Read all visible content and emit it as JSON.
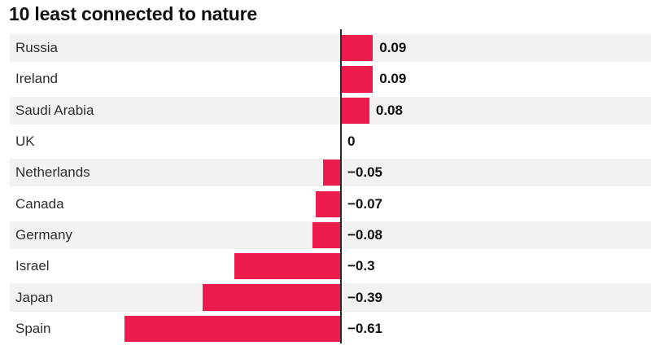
{
  "title": "10 least connected to nature",
  "colors": {
    "bar": "#ed1c4c",
    "row_stripe": "#f2f2f2",
    "axis": "#2b2b2b",
    "title_text": "#101010",
    "category_text": "#2e2e2e",
    "value_text": "#111111",
    "background": "#ffffff"
  },
  "chart_data": {
    "type": "bar",
    "orientation": "horizontal",
    "title": "10 least connected to nature",
    "categories": [
      "Russia",
      "Ireland",
      "Saudi Arabia",
      "UK",
      "Netherlands",
      "Canada",
      "Germany",
      "Israel",
      "Japan",
      "Spain"
    ],
    "values": [
      0.09,
      0.09,
      0.08,
      0,
      -0.05,
      -0.07,
      -0.08,
      -0.3,
      -0.39,
      -0.61
    ],
    "value_labels": [
      "0.09",
      "0.09",
      "0.08",
      "0",
      "−0.05",
      "−0.07",
      "−0.08",
      "−0.3",
      "−0.39",
      "−0.61"
    ],
    "xlabel": "",
    "ylabel": "",
    "xlim": [
      -0.7,
      0.1
    ],
    "baseline": 0,
    "grid": false,
    "legend": false,
    "row_stripes": "alternating, first row shaded",
    "value_label_position": "right of bar end for positives, right of axis for negatives and zero"
  }
}
